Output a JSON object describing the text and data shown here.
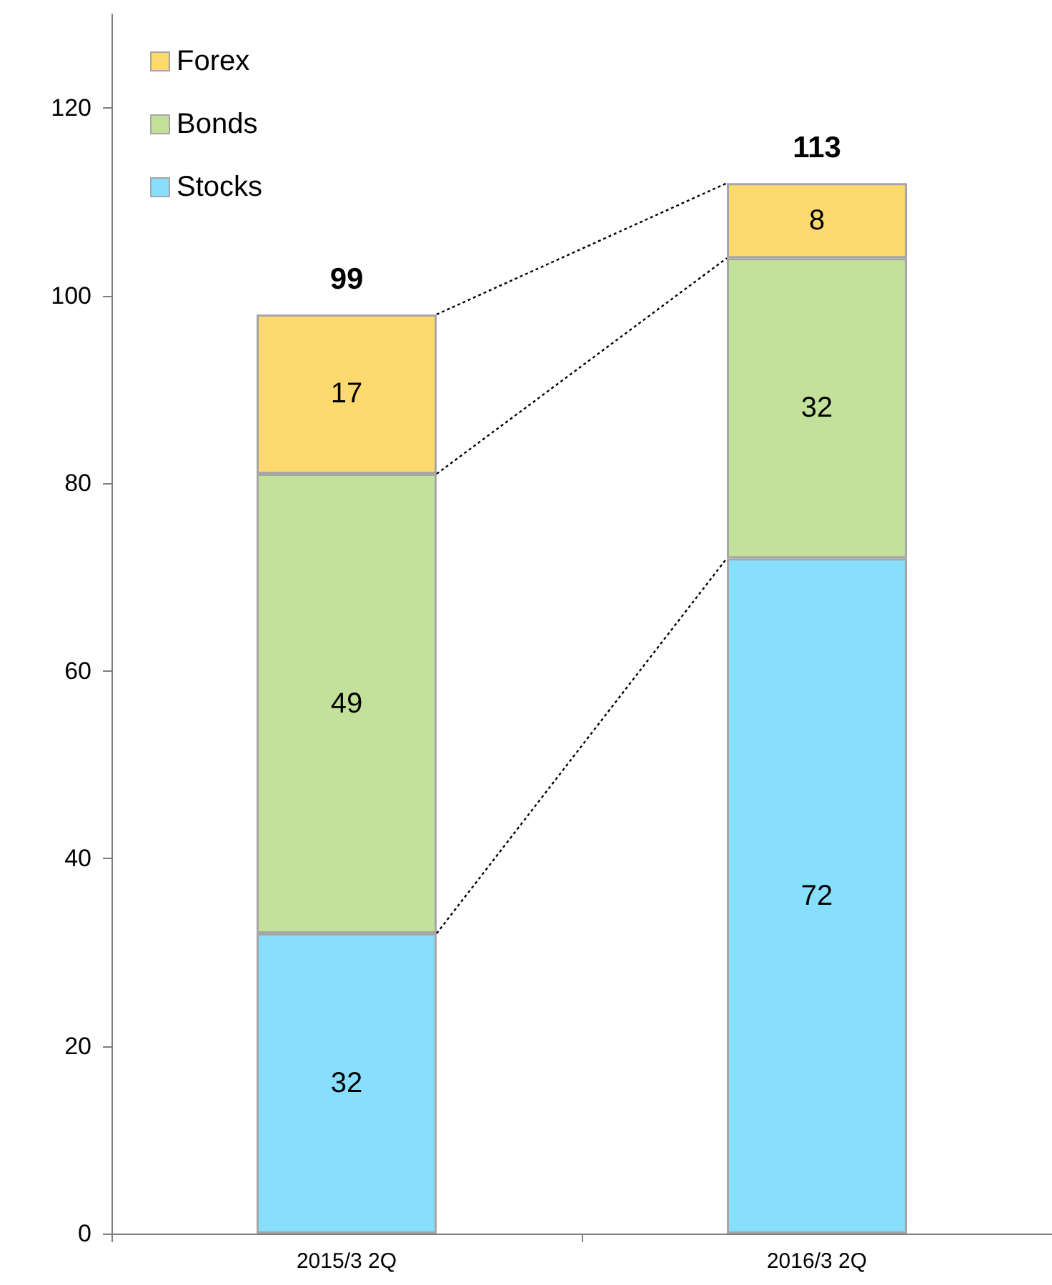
{
  "chart_data": {
    "type": "bar",
    "stacked": true,
    "categories": [
      "2015/3 2Q",
      "2016/3 2Q"
    ],
    "series": [
      {
        "name": "Stocks",
        "color": "#87dffd",
        "values": [
          32,
          72
        ]
      },
      {
        "name": "Bonds",
        "color": "#c4e19c",
        "values": [
          49,
          32
        ]
      },
      {
        "name": "Forex",
        "color": "#fed96f",
        "values": [
          17,
          8
        ]
      }
    ],
    "data_labels": true,
    "totals": [
      "99",
      "113"
    ],
    "ylim": [
      0,
      130
    ],
    "yticks": [
      0,
      20,
      40,
      60,
      80,
      100,
      120
    ],
    "grid": false,
    "legend": "top left"
  }
}
